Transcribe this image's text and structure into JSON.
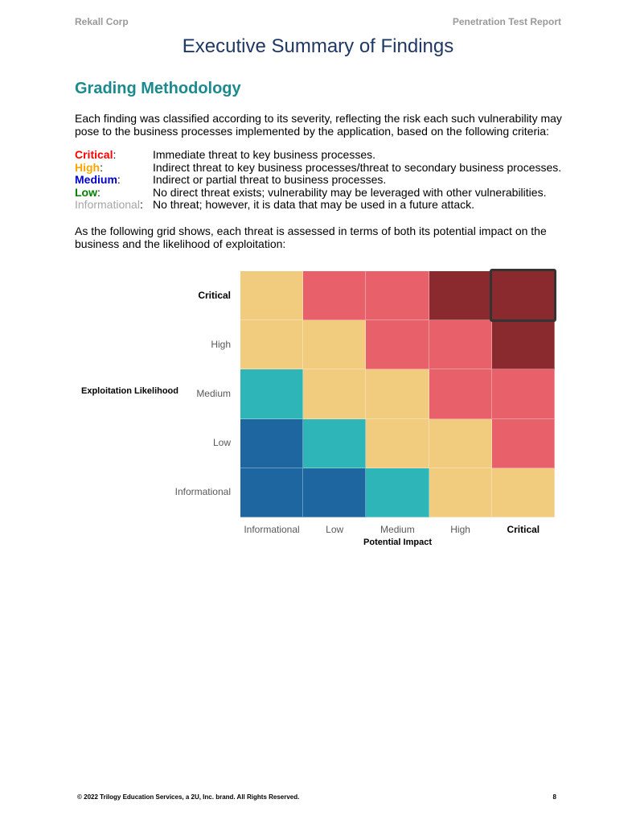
{
  "header": {
    "company": "Rekall Corp",
    "report": "Penetration Test Report"
  },
  "title": "Executive Summary of Findings",
  "section_heading": "Grading Methodology",
  "intro": "Each finding was classified according to its severity, reflecting the risk each such vulnerability may pose to the business processes implemented by the application, based on the following criteria:",
  "criteria": [
    {
      "label": "Critical",
      "desc": "Immediate threat to key business processes.",
      "color": "#ff0000"
    },
    {
      "label": "High",
      "desc": "Indirect threat to key business processes/threat to secondary business processes.",
      "color": "#ffa500"
    },
    {
      "label": "Medium",
      "desc": "Indirect or partial threat to business processes.",
      "color": "#0000cc"
    },
    {
      "label": "Low",
      "desc": "No direct threat exists; vulnerability may be leveraged with other vulnerabilities.",
      "color": "#008000"
    },
    {
      "label": "Informational",
      "desc": "No threat; however, it is data that may be used in a future attack.",
      "color": "#a6a6a6"
    }
  ],
  "grid_intro": "As the following grid shows, each threat is assessed in terms of both its potential impact on the business and the likelihood of exploitation:",
  "chart_data": {
    "type": "heatmap",
    "title": "",
    "xlabel": "Potential Impact",
    "ylabel": "Exploitation Likelihood",
    "x_categories": [
      "Informational",
      "Low",
      "Medium",
      "High",
      "Critical"
    ],
    "y_categories": [
      "Critical",
      "High",
      "Medium",
      "Low",
      "Informational"
    ],
    "cells": [
      [
        "Medium",
        "High",
        "High",
        "Critical",
        "Critical"
      ],
      [
        "Medium",
        "Medium",
        "High",
        "High",
        "Critical"
      ],
      [
        "Low",
        "Medium",
        "Medium",
        "High",
        "High"
      ],
      [
        "Informational",
        "Low",
        "Medium",
        "Medium",
        "High"
      ],
      [
        "Informational",
        "Informational",
        "Low",
        "Medium",
        "Medium"
      ]
    ],
    "severity_colors": {
      "Critical": "#8b2a2e",
      "High": "#e8606a",
      "Medium": "#f1cb7e",
      "Low": "#2eb5b7",
      "Informational": "#1d669f"
    },
    "highlighted_cell": {
      "x": "Critical",
      "y": "Critical"
    },
    "emphasized_labels": [
      "Critical"
    ]
  },
  "footer": {
    "copyright": "© 2022 Trilogy Education Services, a 2U, Inc. brand. All Rights Reserved.",
    "page_number": "8"
  }
}
